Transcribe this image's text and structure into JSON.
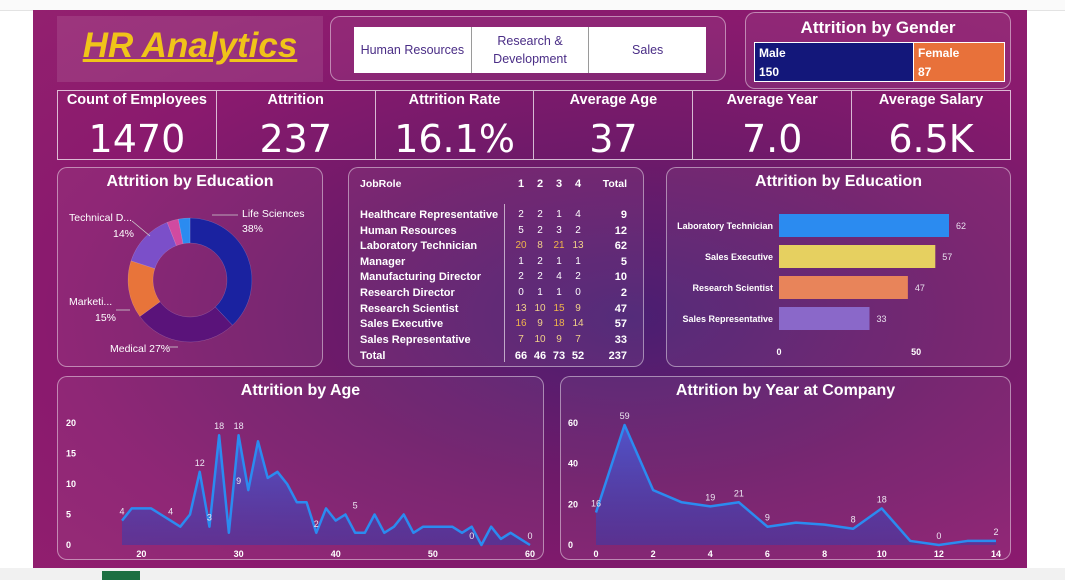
{
  "title": "HR Analytics",
  "departments": [
    "Human Resources",
    "Research & Development",
    "Sales"
  ],
  "gender": {
    "title": "Attrition by Gender",
    "male_label": "Male",
    "male_value": "150",
    "female_label": "Female",
    "female_value": "87",
    "colors": {
      "male": "#13177a",
      "female": "#e8713a"
    }
  },
  "kpis": [
    {
      "label": "Count of Employees",
      "value": "1470"
    },
    {
      "label": "Attrition",
      "value": "237"
    },
    {
      "label": "Attrition Rate",
      "value": "16.1%"
    },
    {
      "label": "Average Age",
      "value": "37"
    },
    {
      "label": "Average Year",
      "value": "7.0"
    },
    {
      "label": "Average Salary",
      "value": "6.5K"
    }
  ],
  "table": {
    "header": {
      "role": "JobRole",
      "c1": "1",
      "c2": "2",
      "c3": "3",
      "c4": "4",
      "total": "Total"
    },
    "rows": [
      {
        "role": "Healthcare Representative",
        "v": [
          "2",
          "2",
          "1",
          "4"
        ],
        "total": "9"
      },
      {
        "role": "Human Resources",
        "v": [
          "5",
          "2",
          "3",
          "2"
        ],
        "total": "12"
      },
      {
        "role": "Laboratory Technician",
        "v": [
          "20",
          "8",
          "21",
          "13"
        ],
        "total": "62"
      },
      {
        "role": "Manager",
        "v": [
          "1",
          "2",
          "1",
          "1"
        ],
        "total": "5"
      },
      {
        "role": "Manufacturing Director",
        "v": [
          "2",
          "2",
          "4",
          "2"
        ],
        "total": "10"
      },
      {
        "role": "Research Director",
        "v": [
          "0",
          "1",
          "1",
          "0"
        ],
        "total": "2"
      },
      {
        "role": "Research Scientist",
        "v": [
          "13",
          "10",
          "15",
          "9"
        ],
        "total": "47"
      },
      {
        "role": "Sales Executive",
        "v": [
          "16",
          "9",
          "18",
          "14"
        ],
        "total": "57"
      },
      {
        "role": "Sales Representative",
        "v": [
          "7",
          "10",
          "9",
          "7"
        ],
        "total": "33"
      },
      {
        "role": "Total",
        "v": [
          "66",
          "46",
          "73",
          "52"
        ],
        "total": "237"
      }
    ]
  },
  "chart_data": [
    {
      "type": "pie",
      "title": "Attrition by Education",
      "donut": true,
      "slices": [
        {
          "label": "Life Sciences",
          "value": 38,
          "color": "#1a22a0"
        },
        {
          "label": "Medical",
          "value": 27,
          "color": "#5a137a"
        },
        {
          "label": "Marketi...",
          "value": 15,
          "color": "#e8743a"
        },
        {
          "label": "Technical D...",
          "value": 14,
          "color": "#7b4fc9"
        },
        {
          "label": "",
          "value": 3,
          "color": "#d14aa0"
        },
        {
          "label": "",
          "value": 3,
          "color": "#2b8bf0"
        }
      ],
      "slice_labels": {
        "life": "Life Sciences",
        "life_pct": "38%",
        "tech": "Technical D...",
        "tech_pct": "14%",
        "mkt": "Marketi...",
        "mkt_pct": "15%",
        "med": "Medical 27%"
      }
    },
    {
      "type": "bar",
      "orientation": "horizontal",
      "title": "Attrition by Education",
      "categories": [
        "Laboratory Technician",
        "Sales Executive",
        "Research Scientist",
        "Sales Representative"
      ],
      "values": [
        62,
        57,
        47,
        33
      ],
      "colors": [
        "#2b8bf0",
        "#e6d060",
        "#e8845a",
        "#8a68c9"
      ],
      "xlim": [
        0,
        70
      ],
      "xticks": [
        "0",
        "50"
      ]
    },
    {
      "type": "area",
      "title": "Attrition by Age",
      "x": [
        18,
        19,
        20,
        21,
        22,
        23,
        24,
        25,
        26,
        27,
        28,
        29,
        30,
        31,
        32,
        33,
        34,
        35,
        36,
        37,
        38,
        39,
        40,
        41,
        42,
        43,
        44,
        45,
        46,
        47,
        48,
        49,
        50,
        51,
        52,
        53,
        54,
        55,
        56,
        57,
        58,
        59,
        60
      ],
      "y": [
        4,
        6,
        6,
        6,
        5,
        4,
        3,
        5,
        12,
        3,
        18,
        2,
        18,
        9,
        17,
        11,
        12,
        10,
        7,
        7,
        2,
        6,
        4,
        5,
        2,
        2,
        5,
        2,
        3,
        5,
        2,
        3,
        3,
        3,
        3,
        2,
        3,
        0,
        3,
        1,
        2,
        1,
        0
      ],
      "ylim": [
        0,
        20
      ],
      "xlim": [
        18,
        60
      ],
      "yticks": [
        "0",
        "5",
        "10",
        "15",
        "20"
      ],
      "xticks": [
        "20",
        "30",
        "40",
        "50",
        "60"
      ],
      "labels": [
        {
          "x": 18,
          "y": 4,
          "t": "4"
        },
        {
          "x": 23,
          "y": 4,
          "t": "4"
        },
        {
          "x": 26,
          "y": 12,
          "t": "12"
        },
        {
          "x": 27,
          "y": 3,
          "t": "3"
        },
        {
          "x": 28,
          "y": 18,
          "t": "18"
        },
        {
          "x": 30,
          "y": 18,
          "t": "18"
        },
        {
          "x": 30,
          "y": 9,
          "t": "9"
        },
        {
          "x": 38,
          "y": 2,
          "t": "2"
        },
        {
          "x": 42,
          "y": 5,
          "t": "5"
        },
        {
          "x": 54,
          "y": 0,
          "t": "0"
        },
        {
          "x": 60,
          "y": 0,
          "t": "0"
        }
      ],
      "color": "#2b8bf0"
    },
    {
      "type": "area",
      "title": "Attrition by Year at Company",
      "x": [
        0,
        1,
        2,
        3,
        4,
        5,
        6,
        7,
        8,
        9,
        10,
        11,
        12,
        13,
        14
      ],
      "y": [
        16,
        59,
        27,
        21,
        19,
        21,
        9,
        11,
        10,
        8,
        18,
        2,
        0,
        2,
        2
      ],
      "ylim": [
        0,
        60
      ],
      "xlim": [
        0,
        14
      ],
      "yticks": [
        "0",
        "20",
        "40",
        "60"
      ],
      "xticks": [
        "0",
        "2",
        "4",
        "6",
        "8",
        "10",
        "12",
        "14"
      ],
      "labels": [
        {
          "x": 0,
          "y": 16,
          "t": "16"
        },
        {
          "x": 1,
          "y": 59,
          "t": "59"
        },
        {
          "x": 4,
          "y": 19,
          "t": "19"
        },
        {
          "x": 5,
          "y": 21,
          "t": "21"
        },
        {
          "x": 6,
          "y": 9,
          "t": "9"
        },
        {
          "x": 9,
          "y": 8,
          "t": "8"
        },
        {
          "x": 10,
          "y": 18,
          "t": "18"
        },
        {
          "x": 12,
          "y": 0,
          "t": "0"
        },
        {
          "x": 14,
          "y": 2,
          "t": "2"
        }
      ],
      "color": "#2b8bf0"
    }
  ]
}
